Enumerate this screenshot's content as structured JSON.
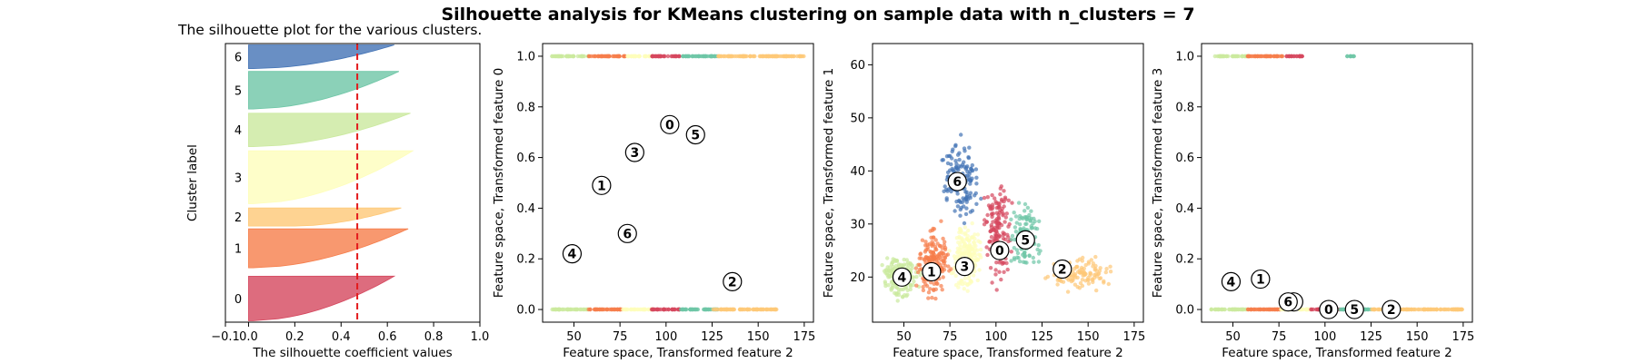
{
  "figure": {
    "suptitle": "Silhouette analysis for KMeans clustering on sample data with n_clusters = 7"
  },
  "palette": {
    "0": "#d5475e",
    "1": "#f67e4b",
    "2": "#fec877",
    "3": "#fefebb",
    "4": "#cbe99e",
    "5": "#6ec6a6",
    "6": "#4373b5"
  },
  "chart_data": [
    {
      "type": "area",
      "title": "The silhouette plot for the various clusters.",
      "xlabel": "The silhouette coefficient values",
      "ylabel": "Cluster label",
      "xlim": [
        -0.1,
        1.0
      ],
      "xticks": [
        -0.1,
        0.0,
        0.2,
        0.4,
        0.6,
        0.8,
        1.0
      ],
      "xtick_labels": [
        "−0.1",
        "0.0",
        "0.2",
        "0.4",
        "0.6",
        "0.8",
        "1.0"
      ],
      "ylim": [
        0,
        1
      ],
      "mean_line": 0.47,
      "series": [
        {
          "name": "0",
          "y_range": [
            0.005,
            0.165
          ],
          "max": 0.63,
          "min": 0.02
        },
        {
          "name": "1",
          "y_range": [
            0.195,
            0.335
          ],
          "max": 0.69,
          "min": 0.02
        },
        {
          "name": "2",
          "y_range": [
            0.345,
            0.41
          ],
          "max": 0.66,
          "min": 0.2
        },
        {
          "name": "3",
          "y_range": [
            0.425,
            0.615
          ],
          "max": 0.71,
          "min": 0.02
        },
        {
          "name": "4",
          "y_range": [
            0.63,
            0.75
          ],
          "max": 0.7,
          "min": 0.02
        },
        {
          "name": "5",
          "y_range": [
            0.765,
            0.9
          ],
          "max": 0.65,
          "min": 0.02
        },
        {
          "name": "6",
          "y_range": [
            0.91,
            0.995
          ],
          "max": 0.63,
          "min": 0.02
        }
      ]
    },
    {
      "type": "scatter",
      "xlabel": "Feature space, Transformed feature 2",
      "ylabel": "Feature space, Transformed feature 0",
      "xlim": [
        33,
        180
      ],
      "ylim": [
        -0.05,
        1.05
      ],
      "xticks": [
        50,
        75,
        100,
        125,
        150,
        175
      ],
      "yticks": [
        0.0,
        0.2,
        0.4,
        0.6,
        0.8,
        1.0
      ],
      "ytick_labels": [
        "0.0",
        "0.2",
        "0.4",
        "0.6",
        "0.8",
        "1.0"
      ],
      "centers": [
        {
          "label": "0",
          "x": 102,
          "y": 0.73
        },
        {
          "label": "1",
          "x": 65,
          "y": 0.49
        },
        {
          "label": "2",
          "x": 136,
          "y": 0.11
        },
        {
          "label": "3",
          "x": 83,
          "y": 0.62
        },
        {
          "label": "4",
          "x": 49,
          "y": 0.22
        },
        {
          "label": "5",
          "x": 116,
          "y": 0.69
        },
        {
          "label": "6",
          "x": 79,
          "y": 0.3
        }
      ],
      "bands": [
        {
          "cluster": "4",
          "x": [
            38,
            58
          ],
          "y": 0.0
        },
        {
          "cluster": "1",
          "x": [
            58,
            76
          ],
          "y": 0.0
        },
        {
          "cluster": "3",
          "x": [
            76,
            93
          ],
          "y": 0.0
        },
        {
          "cluster": "0",
          "x": [
            92,
            108
          ],
          "y": 0.0
        },
        {
          "cluster": "5",
          "x": [
            108,
            128
          ],
          "y": 0.0
        },
        {
          "cluster": "2",
          "x": [
            125,
            160
          ],
          "y": 0.0
        },
        {
          "cluster": "4",
          "x": [
            38,
            58
          ],
          "y": 1.0
        },
        {
          "cluster": "1",
          "x": [
            58,
            78
          ],
          "y": 1.0
        },
        {
          "cluster": "3",
          "x": [
            78,
            92
          ],
          "y": 1.0
        },
        {
          "cluster": "0",
          "x": [
            92,
            108
          ],
          "y": 1.0
        },
        {
          "cluster": "5",
          "x": [
            108,
            128
          ],
          "y": 1.0
        },
        {
          "cluster": "2",
          "x": [
            128,
            175
          ],
          "y": 1.0
        }
      ]
    },
    {
      "type": "scatter",
      "xlabel": "Feature space, Transformed feature 2",
      "ylabel": "Feature space, Transformed feature 1",
      "xlim": [
        33,
        180
      ],
      "ylim": [
        11.5,
        64
      ],
      "xticks": [
        50,
        75,
        100,
        125,
        150,
        175
      ],
      "yticks": [
        20,
        30,
        40,
        50,
        60
      ],
      "centers": [
        {
          "label": "0",
          "x": 102,
          "y": 25
        },
        {
          "label": "1",
          "x": 65,
          "y": 21
        },
        {
          "label": "2",
          "x": 136,
          "y": 21.5
        },
        {
          "label": "3",
          "x": 83,
          "y": 22
        },
        {
          "label": "4",
          "x": 49,
          "y": 20
        },
        {
          "label": "5",
          "x": 116,
          "y": 27
        },
        {
          "label": "6",
          "x": 79,
          "y": 38
        }
      ],
      "clouds": [
        {
          "cluster": "4",
          "x": [
            38,
            58
          ],
          "y": [
            16,
            24
          ],
          "n": 180
        },
        {
          "cluster": "1",
          "x": [
            56,
            76
          ],
          "y": [
            15,
            30
          ],
          "n": 190
        },
        {
          "cluster": "3",
          "x": [
            75,
            93
          ],
          "y": [
            16,
            32
          ],
          "n": 190
        },
        {
          "cluster": "6",
          "x": [
            70,
            92
          ],
          "y": [
            29,
            47
          ],
          "n": 150
        },
        {
          "cluster": "0",
          "x": [
            92,
            110
          ],
          "y": [
            18,
            40
          ],
          "n": 160
        },
        {
          "cluster": "5",
          "x": [
            107,
            125
          ],
          "y": [
            20,
            35
          ],
          "n": 140
        },
        {
          "cluster": "2",
          "x": [
            122,
            170
          ],
          "y": [
            17,
            24
          ],
          "n": 110
        }
      ]
    },
    {
      "type": "scatter",
      "xlabel": "Feature space, Transformed feature 2",
      "ylabel": "Feature space, Transformed feature 3",
      "xlim": [
        33,
        180
      ],
      "ylim": [
        -0.05,
        1.05
      ],
      "xticks": [
        50,
        75,
        100,
        125,
        150,
        175
      ],
      "yticks": [
        0.0,
        0.2,
        0.4,
        0.6,
        0.8,
        1.0
      ],
      "ytick_labels": [
        "0.0",
        "0.2",
        "0.4",
        "0.6",
        "0.8",
        "1.0"
      ],
      "centers": [
        {
          "label": "0",
          "x": 102,
          "y": 0.0
        },
        {
          "label": "1",
          "x": 65,
          "y": 0.12
        },
        {
          "label": "2",
          "x": 136,
          "y": 0.0
        },
        {
          "label": "3",
          "x": 83,
          "y": 0.03
        },
        {
          "label": "4",
          "x": 49,
          "y": 0.11
        },
        {
          "label": "5",
          "x": 116,
          "y": 0.0
        },
        {
          "label": "6",
          "x": 80,
          "y": 0.03
        }
      ],
      "bands": [
        {
          "cluster": "4",
          "x": [
            38,
            58
          ],
          "y": 0.0
        },
        {
          "cluster": "1",
          "x": [
            58,
            76
          ],
          "y": 0.0
        },
        {
          "cluster": "3",
          "x": [
            76,
            92
          ],
          "y": 0.0
        },
        {
          "cluster": "0",
          "x": [
            92,
            108
          ],
          "y": 0.0
        },
        {
          "cluster": "5",
          "x": [
            108,
            125
          ],
          "y": 0.0
        },
        {
          "cluster": "2",
          "x": [
            125,
            175
          ],
          "y": 0.0
        },
        {
          "cluster": "4",
          "x": [
            40,
            58
          ],
          "y": 1.0
        },
        {
          "cluster": "1",
          "x": [
            58,
            78
          ],
          "y": 1.0
        },
        {
          "cluster": "0",
          "x": [
            78,
            88
          ],
          "y": 1.0
        },
        {
          "cluster": "5",
          "x": [
            112,
            116
          ],
          "y": 1.0
        }
      ]
    }
  ]
}
